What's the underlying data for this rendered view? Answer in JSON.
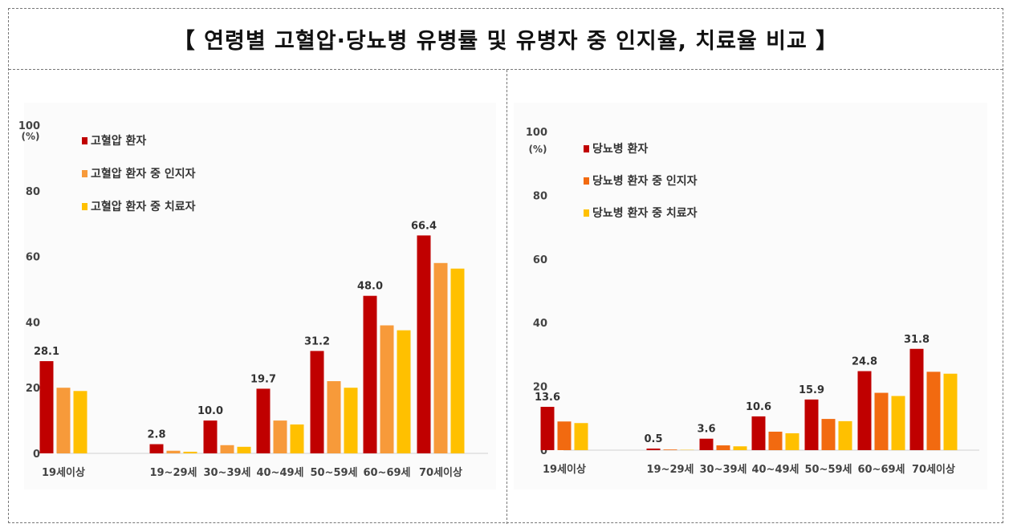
{
  "page_title": "【 연령별 고혈압·당뇨병 유병률 및 유병자 중 인지율, 치료율 비교 】",
  "chart_data": [
    {
      "type": "bar",
      "ylabel": "(%)",
      "ylim": [
        0,
        100
      ],
      "yticks": [
        0,
        20,
        40,
        60,
        80,
        100
      ],
      "legend_position": "top-left",
      "categories": [
        "19세이상",
        "19~29세",
        "30~39세",
        "40~49세",
        "50~59세",
        "60~69세",
        "70세이상"
      ],
      "series": [
        {
          "name": "고혈압 환자",
          "color": "#C00000",
          "values": [
            28.1,
            2.8,
            10.0,
            19.7,
            31.2,
            48.0,
            66.4
          ],
          "labels": [
            "28.1",
            "2.8",
            "10.0",
            "19.7",
            "31.2",
            "48.0",
            "66.4"
          ]
        },
        {
          "name": "고혈압 환자 중 인지자",
          "color": "#F79A3A",
          "values": [
            20.0,
            0.8,
            2.5,
            10.0,
            22.0,
            39.0,
            58.0
          ]
        },
        {
          "name": "고혈압 환자 중 치료자",
          "color": "#FFC000",
          "values": [
            19.0,
            0.5,
            2.0,
            8.8,
            20.0,
            37.5,
            56.3
          ]
        }
      ]
    },
    {
      "type": "bar",
      "ylabel": "(%)",
      "ylim": [
        0,
        100
      ],
      "yticks": [
        0,
        20,
        40,
        60,
        80,
        100
      ],
      "legend_position": "top-left",
      "categories": [
        "19세이상",
        "19~29세",
        "30~39세",
        "40~49세",
        "50~59세",
        "60~69세",
        "70세이상"
      ],
      "series": [
        {
          "name": "당뇨병 환자",
          "color": "#C00000",
          "values": [
            13.6,
            0.5,
            3.6,
            10.6,
            15.9,
            24.8,
            31.8
          ],
          "labels": [
            "13.6",
            "0.5",
            "3.6",
            "10.6",
            "15.9",
            "24.8",
            "31.8"
          ]
        },
        {
          "name": "당뇨병 환자 중 인지자",
          "color": "#F26A10",
          "values": [
            9.0,
            0.2,
            1.5,
            5.8,
            9.8,
            18.0,
            24.6
          ]
        },
        {
          "name": "당뇨병 환자 중 치료자",
          "color": "#FFC000",
          "values": [
            8.5,
            0.1,
            1.2,
            5.3,
            9.1,
            17.0,
            24.0
          ]
        }
      ]
    }
  ]
}
